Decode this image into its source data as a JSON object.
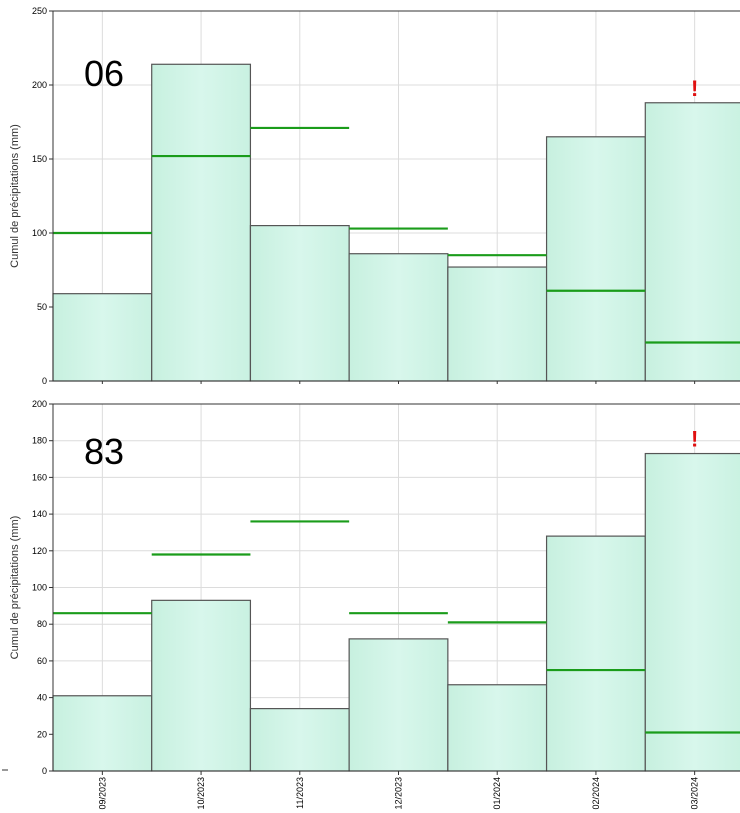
{
  "colors": {
    "bar_fill": "#d3f5e9",
    "bar_stroke": "#555555",
    "normal_line": "#1a9c1a",
    "alert": "#e01010",
    "grid": "#dcdcdc"
  },
  "chart_data": [
    {
      "type": "bar",
      "region_label": "06",
      "ylabel": "Cumul de précipitations (mm)",
      "ylim": [
        0,
        250
      ],
      "yticks": [
        0,
        50,
        100,
        150,
        200,
        250
      ],
      "grid": true,
      "categories": [
        "09/2023",
        "10/2023",
        "11/2023",
        "12/2023",
        "01/2024",
        "02/2024",
        "03/2024"
      ],
      "series": [
        {
          "values": [
            59,
            214,
            105,
            86,
            77,
            165,
            188
          ]
        },
        {
          "values": [
            100,
            152,
            171,
            103,
            85,
            61,
            26
          ]
        }
      ],
      "alert_marker": {
        "category": "03/2024",
        "text": "!"
      }
    },
    {
      "type": "bar",
      "region_label": "83",
      "ylabel": "Cumul de précipitations (mm)",
      "ylim": [
        0,
        200
      ],
      "yticks": [
        0,
        20,
        40,
        60,
        80,
        100,
        120,
        140,
        160,
        180,
        200
      ],
      "grid": true,
      "categories": [
        "09/2023",
        "10/2023",
        "11/2023",
        "12/2023",
        "01/2024",
        "02/2024",
        "03/2024"
      ],
      "series": [
        {
          "values": [
            41,
            93,
            34,
            72,
            47,
            128,
            173
          ]
        },
        {
          "values": [
            86,
            118,
            136,
            86,
            81,
            55,
            21
          ]
        }
      ],
      "alert_marker": {
        "category": "03/2024",
        "text": "!"
      }
    }
  ]
}
